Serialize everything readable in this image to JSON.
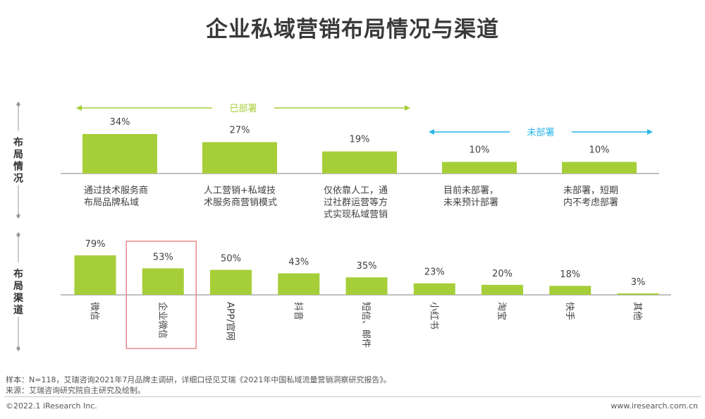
{
  "title": "企业私域营销布局情况与渠道",
  "colors": {
    "bar": "#a6ce39",
    "deployed": "#a6ce39",
    "undeployed": "#29b6e8",
    "highlight": "#e88a8a",
    "axis": "#808080"
  },
  "chart_data": [
    {
      "type": "bar",
      "side_label": "布局情况",
      "groups": [
        {
          "label": "已部署",
          "color": "#a6ce39",
          "range": [
            0,
            2
          ]
        },
        {
          "label": "未部署",
          "color": "#29b6e8",
          "range": [
            3,
            4
          ]
        }
      ],
      "categories": [
        [
          "通过技术服务商",
          "布局品牌私域"
        ],
        [
          "人工营销+私域技",
          "术服务商营销模式"
        ],
        [
          "仅依靠人工，通",
          "过社群运营等方",
          "式实现私域营销"
        ],
        [
          "目前未部署，",
          "未来预计部署"
        ],
        [
          "未部署，短期",
          "内不考虑部署"
        ]
      ],
      "values": [
        34,
        27,
        19,
        10,
        10
      ],
      "value_labels": [
        "34%",
        "27%",
        "19%",
        "10%",
        "10%"
      ],
      "ylim": [
        0,
        34
      ]
    },
    {
      "type": "bar",
      "side_label": "布局渠道",
      "categories": [
        "微信",
        "企业微信",
        "APP/官网",
        "抖音",
        "短信、邮件",
        "小红书",
        "淘宝",
        "快手",
        "其他"
      ],
      "values": [
        79,
        53,
        50,
        43,
        35,
        23,
        20,
        18,
        3
      ],
      "value_labels": [
        "79%",
        "53%",
        "50%",
        "43%",
        "35%",
        "23%",
        "20%",
        "18%",
        "3%"
      ],
      "highlighted": "企业微信",
      "ylim": [
        0,
        79
      ]
    }
  ],
  "notes": [
    "样本：N=118，艾瑞咨询2021年7月品牌主调研，详细口径见艾瑞《2021年中国私域流量营销洞察研究报告》。",
    "来源：艾瑞咨询研究院自主研究及绘制。"
  ],
  "footer": {
    "left": "©2022.1 iResearch Inc.",
    "right": "www.iresearch.com.cn"
  }
}
